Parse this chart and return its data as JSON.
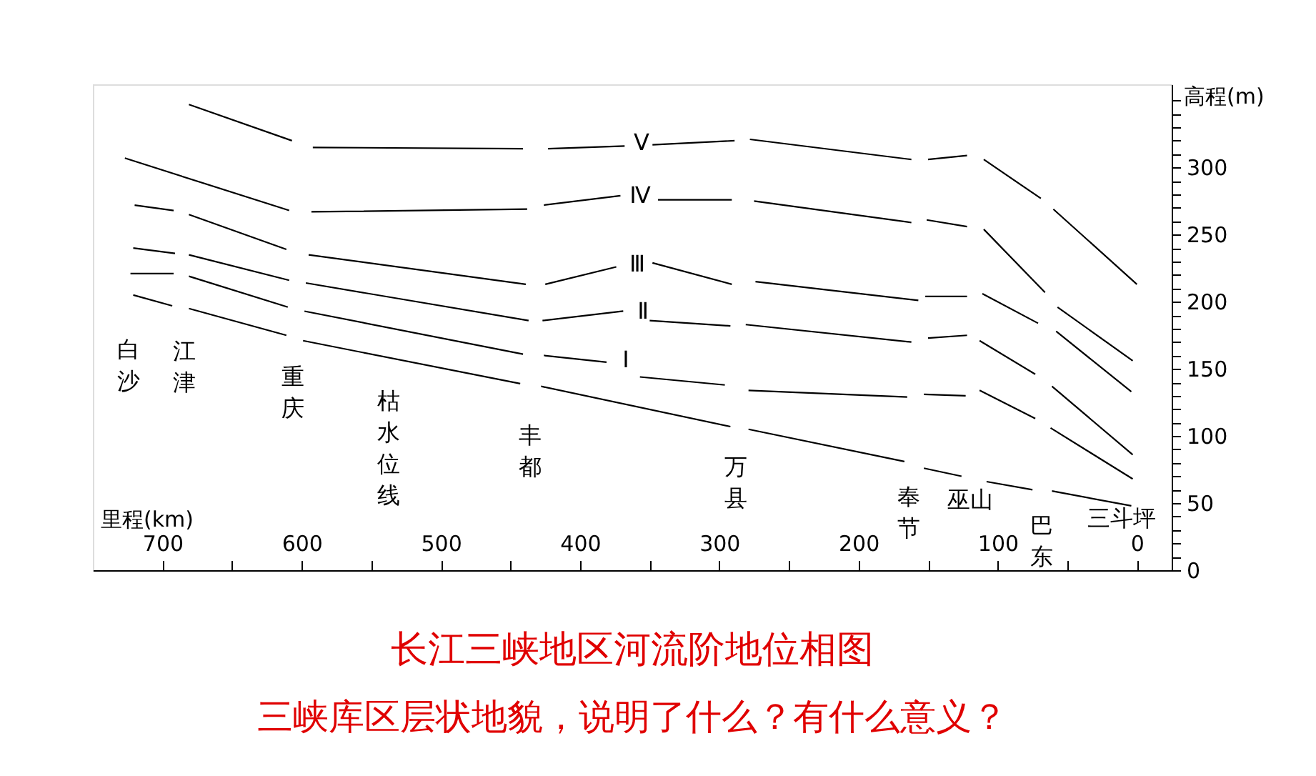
{
  "chart_data": {
    "type": "line",
    "title": "长江三峡地区河流阶地位相图",
    "subtitle": "三峡库区层状地貌，说明了什么？有什么意义？",
    "xlabel": "里程(km)",
    "ylabel": "高程(m)",
    "xlim": [
      750,
      -25
    ],
    "ylim": [
      0,
      362
    ],
    "xticks": [
      700,
      {
        "value": 650,
        "label": null
      },
      600,
      {
        "value": 550,
        "label": null
      },
      500,
      {
        "value": 450,
        "label": null
      },
      400,
      {
        "value": 350,
        "label": null
      },
      300,
      {
        "value": 250,
        "label": null
      },
      200,
      {
        "value": 150,
        "label": null
      },
      100,
      {
        "value": 50,
        "label": null
      },
      0
    ],
    "yticks": [
      0,
      {
        "value": 10,
        "label": null
      },
      {
        "value": 20,
        "label": null
      },
      {
        "value": 30,
        "label": null
      },
      {
        "value": 40,
        "label": null
      },
      50,
      {
        "value": 60,
        "label": null
      },
      {
        "value": 70,
        "label": null
      },
      {
        "value": 80,
        "label": null
      },
      {
        "value": 90,
        "label": null
      },
      100,
      {
        "value": 110,
        "label": null
      },
      {
        "value": 120,
        "label": null
      },
      {
        "value": 130,
        "label": null
      },
      {
        "value": 140,
        "label": null
      },
      150,
      {
        "value": 160,
        "label": null
      },
      {
        "value": 170,
        "label": null
      },
      {
        "value": 180,
        "label": null
      },
      {
        "value": 190,
        "label": null
      },
      200,
      {
        "value": 210,
        "label": null
      },
      {
        "value": 220,
        "label": null
      },
      {
        "value": 230,
        "label": null
      },
      {
        "value": 240,
        "label": null
      },
      250,
      {
        "value": 260,
        "label": null
      },
      {
        "value": 270,
        "label": null
      },
      {
        "value": 280,
        "label": null
      },
      {
        "value": 290,
        "label": null
      },
      300,
      {
        "value": 310,
        "label": null
      },
      {
        "value": 320,
        "label": null
      },
      {
        "value": 330,
        "label": null
      },
      {
        "value": 340,
        "label": null
      },
      {
        "value": 350,
        "label": null
      }
    ],
    "grid": false,
    "legend": false,
    "marker": "none",
    "line_style": "solid",
    "series": [
      {
        "name": "枯水位线",
        "color": "#000000",
        "x": [
          721,
          693,
          687,
          681,
          611,
          605,
          599,
          443,
          435,
          428,
          292,
          286,
          279,
          167,
          160,
          153,
          126,
          117,
          108,
          75,
          68,
          61,
          4
        ],
        "values": [
          205,
          197,
          null,
          195,
          175,
          null,
          171,
          139,
          null,
          137,
          107,
          null,
          105,
          81,
          null,
          76,
          70,
          null,
          66,
          60,
          null,
          59,
          48
        ]
      },
      {
        "name": "Ⅰ",
        "color": "#000000",
        "x": [
          723,
          692,
          686,
          681,
          610,
          604,
          598,
          441,
          434,
          426,
          381,
          369,
          357,
          296,
          288,
          279,
          165,
          159,
          153,
          123,
          118,
          113,
          73,
          67,
          62,
          3
        ],
        "values": [
          221,
          221,
          null,
          219,
          196,
          null,
          193,
          161,
          null,
          160,
          155,
          null,
          144,
          138,
          null,
          134,
          129,
          null,
          131,
          130,
          null,
          134,
          113,
          null,
          106,
          68
        ]
      },
      {
        "name": "Ⅱ",
        "color": "#000000",
        "x": [
          721,
          691,
          686,
          681,
          609,
          603,
          597,
          437,
          432,
          427,
          369,
          360,
          350,
          292,
          286,
          281,
          162,
          156,
          150,
          122,
          117,
          113,
          73,
          67,
          61,
          3
        ],
        "values": [
          240,
          236,
          null,
          235,
          216,
          null,
          214,
          186,
          null,
          186,
          193,
          null,
          186,
          182,
          null,
          183,
          170,
          null,
          173,
          175,
          null,
          171,
          146,
          null,
          137,
          86
        ]
      },
      {
        "name": "Ⅲ",
        "color": "#000000",
        "x": [
          720,
          692,
          686,
          681,
          611,
          603,
          595,
          439,
          432,
          425,
          374,
          361,
          348,
          291,
          283,
          274,
          157,
          155,
          152,
          122,
          116,
          111,
          71,
          64,
          58,
          4
        ],
        "values": [
          272,
          268,
          null,
          265,
          239,
          null,
          235,
          213,
          null,
          213,
          226,
          null,
          229,
          213,
          null,
          215,
          201,
          null,
          204,
          204,
          null,
          206,
          184,
          null,
          178,
          133
        ]
      },
      {
        "name": "Ⅳ",
        "color": "#000000",
        "x": [
          727,
          609,
          601,
          593,
          438,
          432,
          426,
          371,
          357,
          344,
          291,
          283,
          275,
          162,
          156,
          151,
          122,
          116,
          110,
          66,
          61,
          57,
          3
        ],
        "values": [
          307,
          268,
          null,
          267,
          269,
          null,
          272,
          279,
          null,
          276,
          276,
          null,
          275,
          259,
          null,
          261,
          256,
          null,
          254,
          207,
          null,
          196,
          156
        ]
      },
      {
        "name": "Ⅴ",
        "color": "#000000",
        "x": [
          681,
          607,
          600,
          592,
          441,
          432,
          423,
          368,
          358,
          348,
          289,
          284,
          278,
          162,
          156,
          150,
          122,
          116,
          110,
          69,
          64,
          60,
          0
        ],
        "values": [
          347,
          320,
          null,
          315,
          314,
          null,
          314,
          316,
          null,
          317,
          320,
          null,
          321,
          306,
          null,
          306,
          309,
          null,
          306,
          277,
          null,
          269,
          213
        ]
      }
    ],
    "annotations": [
      "白沙",
      "江津",
      "重庆",
      "丰都",
      "万县",
      "奉节",
      "巫山",
      "巴东",
      "三斗坪"
    ]
  }
}
